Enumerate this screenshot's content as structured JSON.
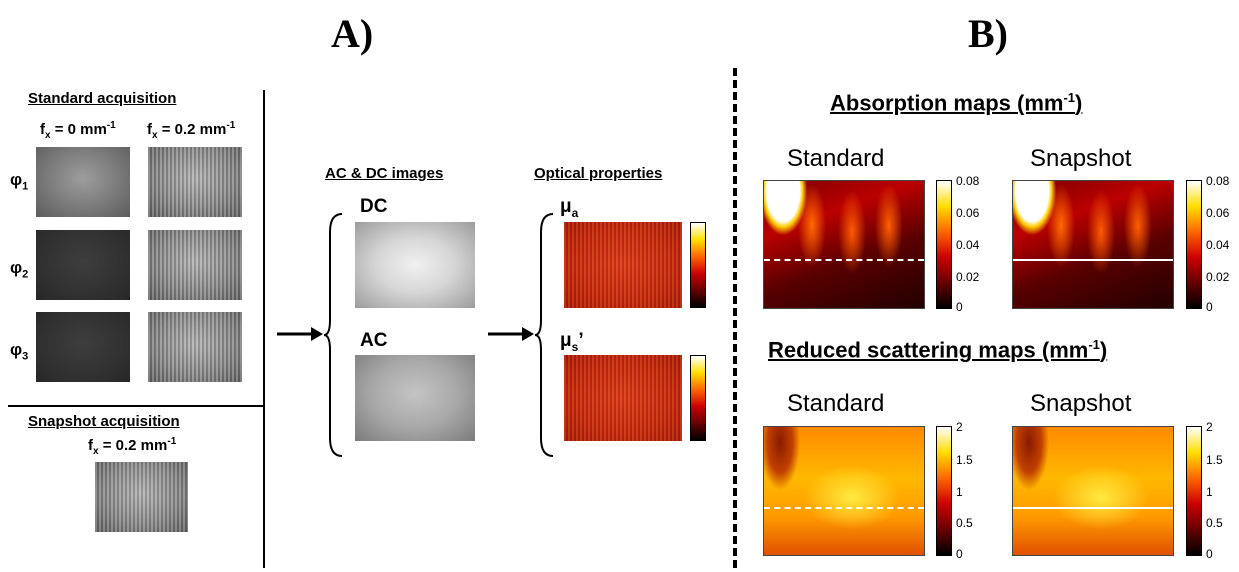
{
  "panel_a": {
    "label": "A)",
    "standard_title": "Standard acquisition",
    "fx0": "f",
    "fx0_sub": "x",
    "fx0_rest": " = 0 mm",
    "fx0_sup": "-1",
    "fx02": "f",
    "fx02_sub": "x",
    "fx02_rest": " = 0.2 mm",
    "fx02_sup": "-1",
    "phi": [
      "φ",
      "φ",
      "φ"
    ],
    "phi_sub": [
      "1",
      "2",
      "3"
    ],
    "snapshot_title": "Snapshot acquisition",
    "snap_fx": "f",
    "snap_fx_sub": "x",
    "snap_fx_rest": " = 0.2 mm",
    "snap_fx_sup": "-1",
    "acdc_title": "AC  &  DC images",
    "dc_label": "DC",
    "ac_label": "AC",
    "optical_title": "Optical properties",
    "mua": "μ",
    "mua_sub": "a",
    "mus": "μ",
    "mus_sub": "s",
    "mus_prime": "’"
  },
  "panel_b": {
    "label": "B)",
    "absorption_title": "Absorption maps  (mm",
    "absorption_sup": "-1",
    "absorption_close": ")",
    "scattering_title": "Reduced scattering maps  (mm",
    "scattering_sup": "-1",
    "scattering_close": ")",
    "standard": "Standard",
    "snapshot": "Snapshot",
    "abs_ticks": [
      "0.08",
      "0.06",
      "0.04",
      "0.02",
      "0"
    ],
    "sca_ticks": [
      "2",
      "1.5",
      "1",
      "0.5",
      "0"
    ]
  }
}
